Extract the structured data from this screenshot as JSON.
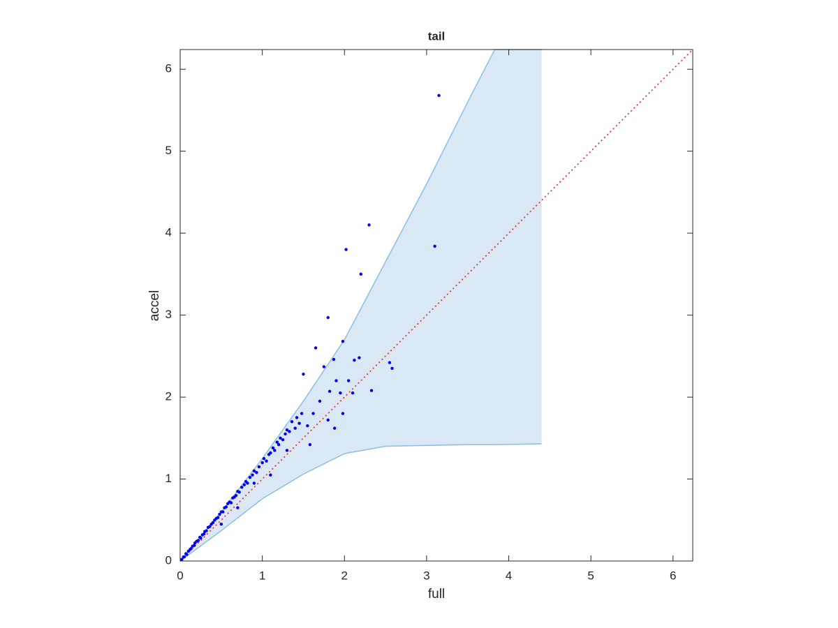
{
  "chart_data": {
    "type": "scatter",
    "title": "tail",
    "x_label": "full",
    "y_label": "accel",
    "xlim": [
      0,
      6.24
    ],
    "ylim": [
      0,
      6.24
    ],
    "xticks": [
      0,
      1,
      2,
      3,
      4,
      5,
      6
    ],
    "yticks": [
      0,
      1,
      2,
      3,
      4,
      5,
      6
    ],
    "band": {
      "color": "#d9e8f4",
      "line_color": "#8bbfe0",
      "x": [
        0,
        0.5,
        1,
        1.5,
        2,
        2.5,
        3,
        3.5,
        3.83,
        4.4
      ],
      "upper": [
        0,
        0.6,
        1.25,
        1.95,
        2.7,
        3.65,
        4.6,
        5.6,
        6.24,
        6.24
      ],
      "lower": [
        0,
        0.37,
        0.76,
        1.06,
        1.31,
        1.4,
        1.41,
        1.42,
        1.42,
        1.43
      ]
    },
    "diagonal": {
      "color": "#e8332a",
      "x": [
        0,
        6.24
      ],
      "y": [
        0,
        6.24
      ]
    },
    "points": {
      "color": "#0000ee",
      "x": [
        0.02,
        0.04,
        0.05,
        0.07,
        0.08,
        0.1,
        0.12,
        0.13,
        0.15,
        0.17,
        0.18,
        0.2,
        0.22,
        0.24,
        0.25,
        0.27,
        0.29,
        0.3,
        0.32,
        0.34,
        0.36,
        0.38,
        0.4,
        0.42,
        0.44,
        0.46,
        0.48,
        0.5,
        0.52,
        0.54,
        0.56,
        0.58,
        0.6,
        0.62,
        0.64,
        0.66,
        0.68,
        0.7,
        0.72,
        0.75,
        0.78,
        0.8,
        0.82,
        0.85,
        0.88,
        0.9,
        0.93,
        0.96,
        1.0,
        1.02,
        1.05,
        1.08,
        1.1,
        1.13,
        1.15,
        1.18,
        1.2,
        1.22,
        1.25,
        1.28,
        1.3,
        1.33,
        1.36,
        1.4,
        1.42,
        1.45,
        1.48,
        1.3,
        1.1,
        0.9,
        0.7,
        0.5,
        3.15,
        2.3,
        2.02,
        3.1,
        2.2,
        1.8,
        1.65,
        1.98,
        1.5,
        1.75,
        1.87,
        2.18,
        2.55,
        2.58,
        2.12,
        2.33,
        2.05,
        1.9,
        1.95,
        1.82,
        2.1,
        1.7,
        1.62,
        1.98,
        1.8,
        1.88,
        1.58,
        1.55
      ],
      "y": [
        0.02,
        0.05,
        0.05,
        0.09,
        0.08,
        0.12,
        0.14,
        0.15,
        0.18,
        0.19,
        0.22,
        0.24,
        0.25,
        0.29,
        0.28,
        0.32,
        0.33,
        0.36,
        0.37,
        0.41,
        0.42,
        0.45,
        0.47,
        0.5,
        0.52,
        0.53,
        0.57,
        0.6,
        0.6,
        0.65,
        0.66,
        0.7,
        0.72,
        0.71,
        0.77,
        0.78,
        0.8,
        0.85,
        0.84,
        0.9,
        0.93,
        0.97,
        0.95,
        1.02,
        1.05,
        1.1,
        1.08,
        1.15,
        1.2,
        1.25,
        1.22,
        1.3,
        1.32,
        1.38,
        1.35,
        1.45,
        1.42,
        1.5,
        1.48,
        1.55,
        1.6,
        1.58,
        1.7,
        1.62,
        1.75,
        1.68,
        1.8,
        1.35,
        1.05,
        0.95,
        0.65,
        0.45,
        5.68,
        4.1,
        3.8,
        3.84,
        3.5,
        2.97,
        2.6,
        2.68,
        2.28,
        2.37,
        2.46,
        2.48,
        2.42,
        2.35,
        2.45,
        2.08,
        2.2,
        2.2,
        2.05,
        2.07,
        2.05,
        1.95,
        1.8,
        1.8,
        1.72,
        1.62,
        1.42,
        1.65
      ]
    }
  }
}
